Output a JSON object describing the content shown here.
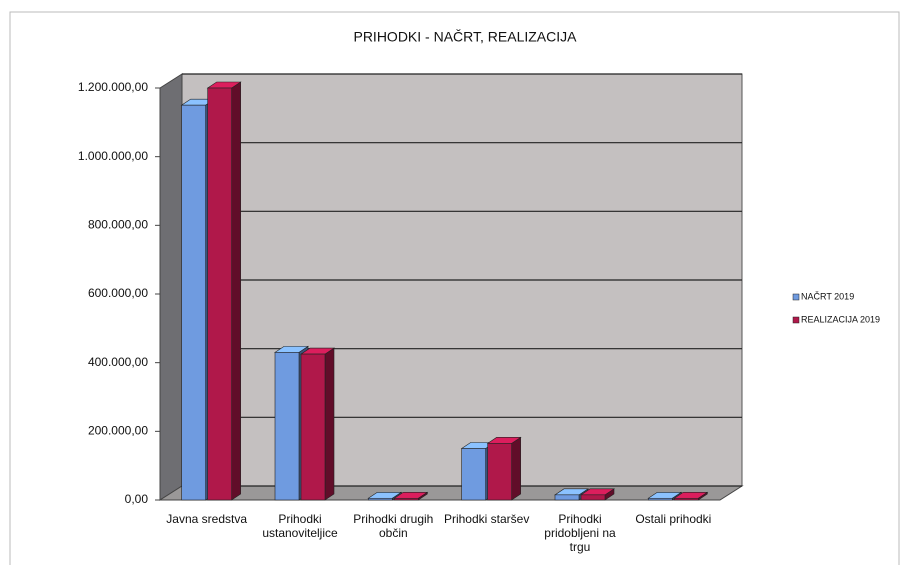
{
  "chart_data": {
    "type": "bar3d",
    "title": "PRIHODKI - NAČRT, REALIZACIJA",
    "categories": [
      "Javna sredstva",
      "Prihodki ustanoviteljice",
      "Prihodki drugih občin",
      "Prihodki staršev",
      "Prihodki pridobljeni na trgu",
      "Ostali prihodki"
    ],
    "series": [
      {
        "name": "NAČRT 2019",
        "color": "#6f9be0",
        "values": [
          1150000,
          430000,
          5000,
          150000,
          15000,
          5000
        ]
      },
      {
        "name": "REALIZACIJA 2019",
        "color": "#b0184a",
        "values": [
          1200000,
          425000,
          5000,
          165000,
          15000,
          5000
        ]
      }
    ],
    "ylim": [
      0,
      1200000
    ],
    "yticks": [
      {
        "value": 0,
        "label": "0,00"
      },
      {
        "value": 200000,
        "label": "200.000,00"
      },
      {
        "value": 400000,
        "label": "400.000,00"
      },
      {
        "value": 600000,
        "label": "600.000,00"
      },
      {
        "value": 800000,
        "label": "800.000,00"
      },
      {
        "value": 1000000,
        "label": "1.000.000,00"
      },
      {
        "value": 1200000,
        "label": "1.200.000,00"
      }
    ],
    "grid": true,
    "legend": "right"
  }
}
